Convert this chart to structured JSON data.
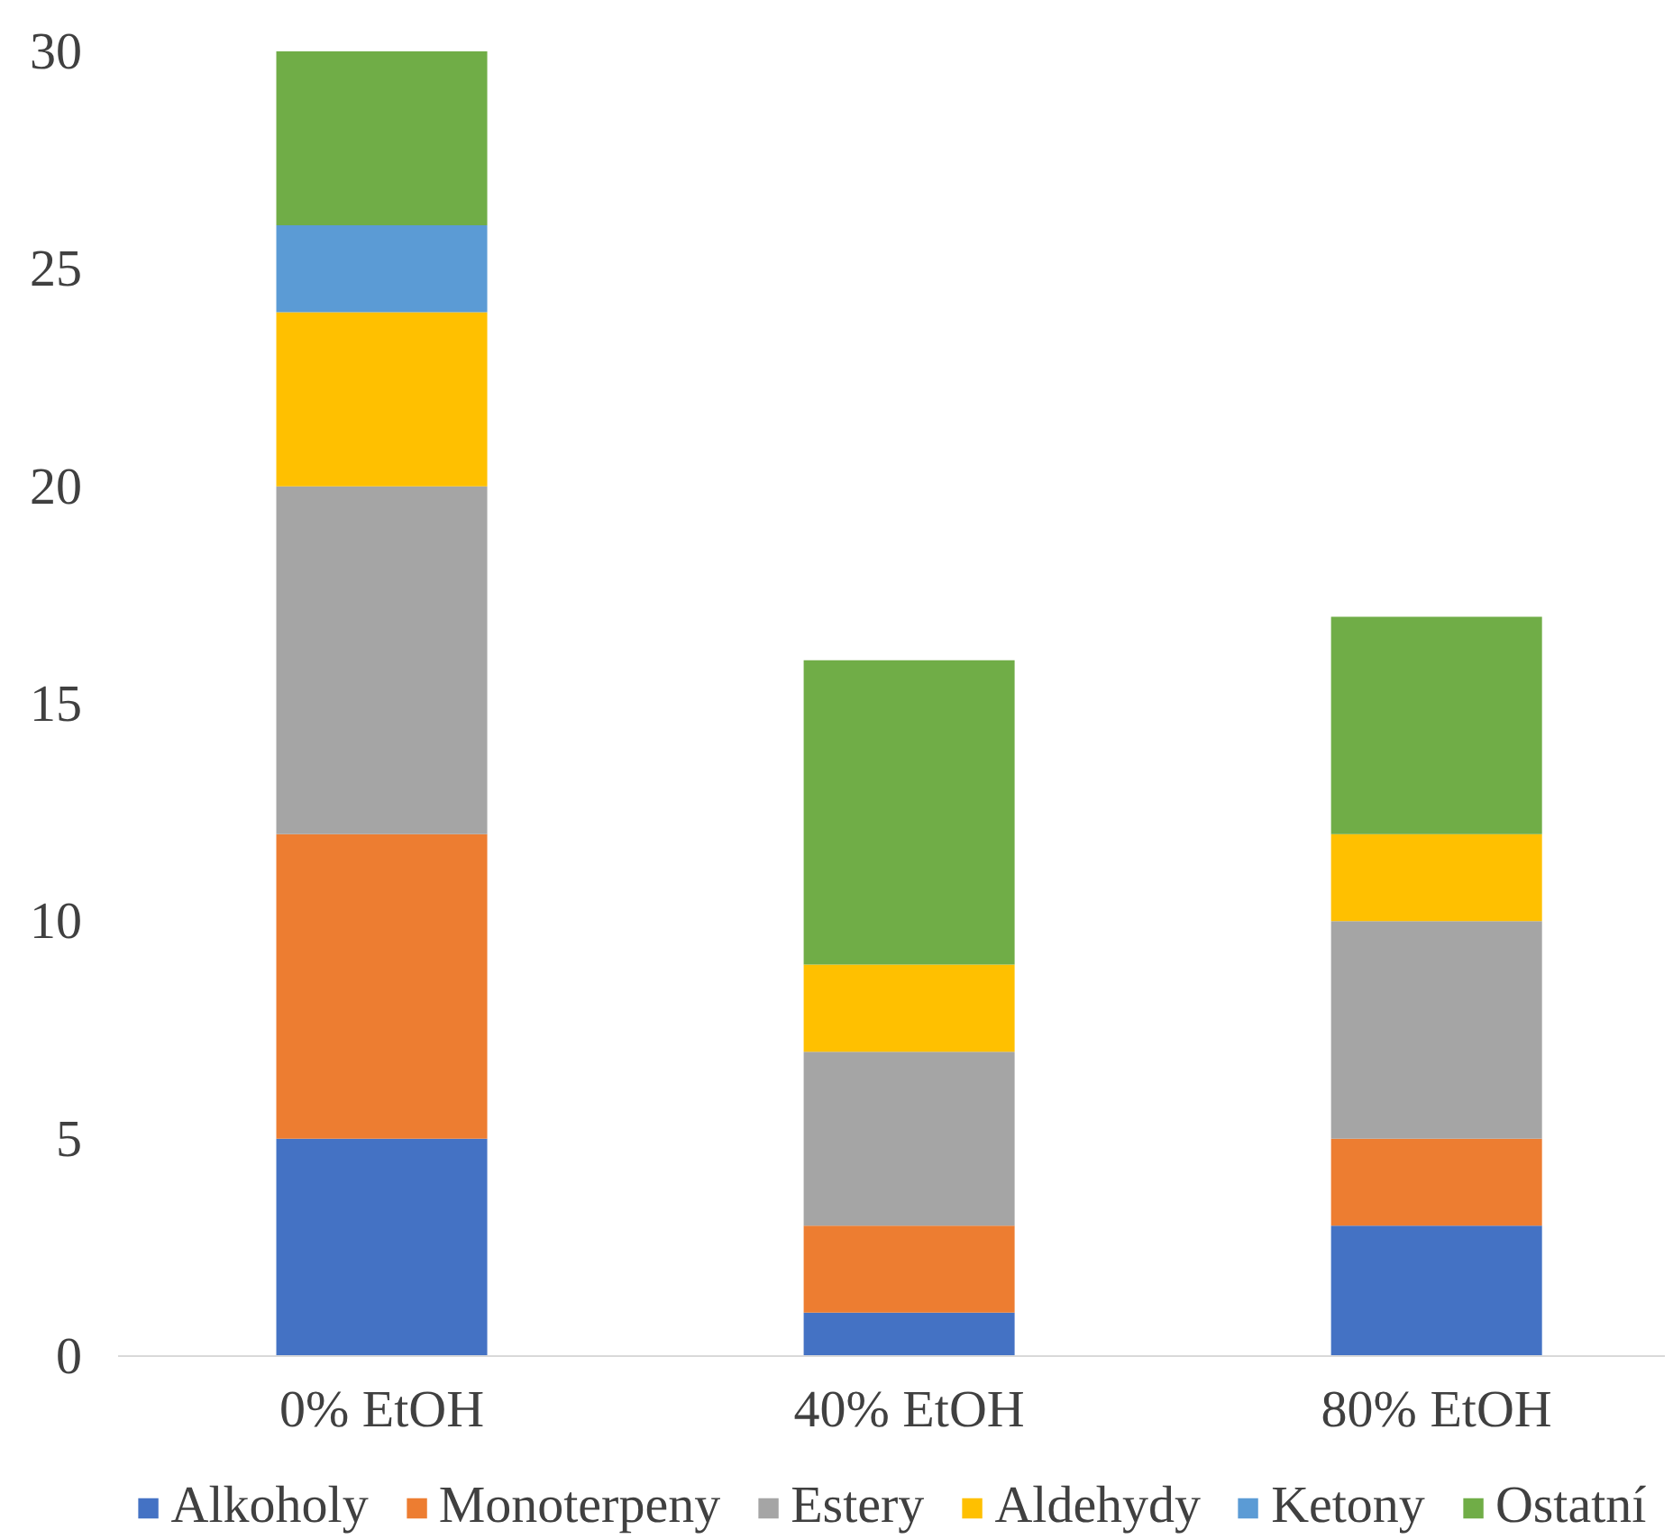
{
  "chart_data": {
    "type": "bar",
    "stacked": true,
    "categories": [
      "0% EtOH",
      "40% EtOH",
      "80% EtOH"
    ],
    "series": [
      {
        "name": "Alkoholy",
        "color": "#4472c4",
        "values": [
          5,
          1,
          3
        ]
      },
      {
        "name": "Monoterpeny",
        "color": "#ed7d31",
        "values": [
          7,
          2,
          2
        ]
      },
      {
        "name": "Estery",
        "color": "#a5a5a5",
        "values": [
          8,
          4,
          5
        ]
      },
      {
        "name": "Aldehydy",
        "color": "#ffc000",
        "values": [
          4,
          2,
          2
        ]
      },
      {
        "name": "Ketony",
        "color": "#5b9bd5",
        "values": [
          2,
          0,
          0
        ]
      },
      {
        "name": "Ostatní",
        "color": "#70ad47",
        "values": [
          4,
          7,
          5
        ]
      }
    ],
    "ylim": [
      0,
      30
    ],
    "yticks": [
      0,
      5,
      10,
      15,
      20,
      25,
      30
    ],
    "grid": false,
    "legend": "bottom"
  }
}
